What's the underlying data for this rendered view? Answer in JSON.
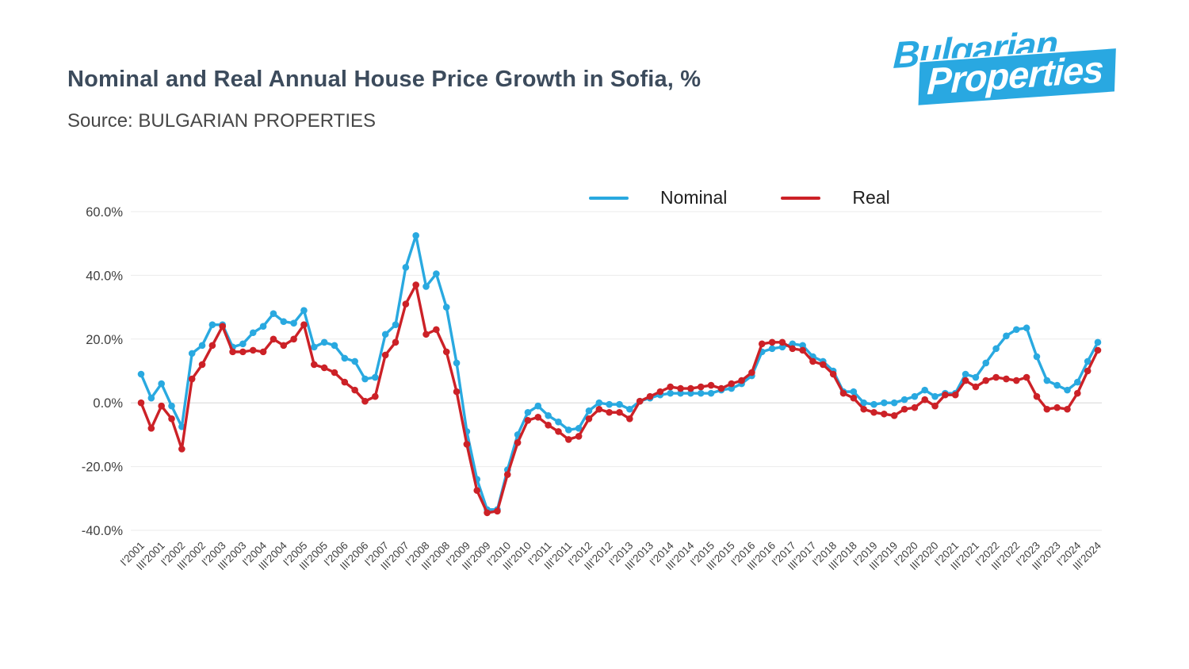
{
  "header": {
    "title": "Nominal and Real Annual House Price Growth in Sofia, %",
    "source": "Source: BULGARIAN PROPERTIES"
  },
  "logo": {
    "line1": "Bulgarian",
    "line2": "Properties",
    "brand_color": "#29a8e1"
  },
  "chart_data": {
    "type": "line",
    "title": "Nominal and Real Annual House Price Growth in Sofia, %",
    "xlabel": "",
    "ylabel": "",
    "ylim": [
      -40,
      60
    ],
    "grid": true,
    "legend_position": "top",
    "background": "#ffffff",
    "gridline_color": "#ebebeb",
    "zeroline_color": "#d6d6d6",
    "tick_color": "#3f3f3f",
    "points_per_label": 2,
    "x_labels": [
      "I'2001",
      "III'2001",
      "I'2002",
      "III'2002",
      "I'2003",
      "III'2003",
      "I'2004",
      "III'2004",
      "I'2005",
      "III'2005",
      "I'2006",
      "III'2006",
      "I'2007",
      "III'2007",
      "I'2008",
      "III'2008",
      "I'2009",
      "III'2009",
      "I'2010",
      "III'2010",
      "I'2011",
      "III'2011",
      "I'2012",
      "III'2012",
      "I'2013",
      "III'2013",
      "I'2014",
      "III'2014",
      "I'2015",
      "III'2015",
      "I'2016",
      "III'2016",
      "I'2017",
      "III'2017",
      "I'2018",
      "III'2018",
      "I'2019",
      "III'2019",
      "I'2020",
      "III'2020",
      "I'2021",
      "III'2021",
      "I'2022",
      "III'2022",
      "I'2023",
      "III'2023",
      "I'2024",
      "III'2024"
    ],
    "yticks": [
      {
        "value": 60,
        "label": "60.0%"
      },
      {
        "value": 40,
        "label": "40.0%"
      },
      {
        "value": 20,
        "label": "20.0%"
      },
      {
        "value": 0,
        "label": "0.0%"
      },
      {
        "value": -20,
        "label": "-20.0%"
      },
      {
        "value": -40,
        "label": "-40.0%"
      }
    ],
    "series": [
      {
        "name": "Nominal",
        "color": "#29a9e0",
        "values": [
          9,
          1.5,
          6,
          -1,
          -7.5,
          15.5,
          18,
          24.5,
          24.5,
          17.5,
          18.5,
          22,
          24,
          28,
          25.5,
          25,
          29,
          17.5,
          19,
          18,
          14,
          13,
          7.5,
          8,
          21.5,
          24.5,
          42.5,
          52.5,
          36.5,
          40.5,
          30,
          12.5,
          -9,
          -24,
          -33.5,
          -33.5,
          -21,
          -10,
          -3,
          -1,
          -4,
          -6,
          -8.5,
          -8,
          -2.5,
          0,
          -0.5,
          -0.5,
          -2,
          0.5,
          1.5,
          2.5,
          3,
          3,
          3,
          3,
          3,
          4,
          4.5,
          6,
          8.5,
          16,
          17,
          17.5,
          18.5,
          18,
          14.5,
          13,
          10,
          3.5,
          3.5,
          0,
          -0.5,
          0,
          0,
          1,
          2,
          4,
          2,
          3,
          3,
          9,
          8,
          12.5,
          17,
          21,
          23,
          23.5,
          14.5,
          7,
          5.5,
          4,
          6.5,
          13,
          19
        ]
      },
      {
        "name": "Real",
        "color": "#cc2127",
        "values": [
          0,
          -8,
          -1,
          -5,
          -14.5,
          7.5,
          12,
          18,
          24,
          16,
          16,
          16.5,
          16,
          20,
          18,
          20,
          24.5,
          12,
          11,
          9.5,
          6.5,
          4,
          0.5,
          2,
          15,
          19,
          31,
          37,
          21.5,
          23,
          16,
          3.5,
          -13,
          -27.5,
          -34.5,
          -34,
          -22.5,
          -12.5,
          -5.5,
          -4.5,
          -7,
          -9,
          -11.5,
          -10.5,
          -5,
          -2,
          -3,
          -3,
          -5,
          0.5,
          2,
          3.5,
          5,
          4.5,
          4.5,
          5,
          5.5,
          4.5,
          6,
          7,
          9.5,
          18.5,
          19,
          19,
          17,
          16.5,
          13,
          12,
          9,
          3,
          1.5,
          -2,
          -3,
          -3.5,
          -4,
          -2,
          -1.5,
          1,
          -1,
          2.5,
          2.5,
          7,
          5,
          7,
          8,
          7.5,
          7,
          8,
          2,
          -2,
          -1.5,
          -2,
          3,
          10,
          16.5
        ]
      }
    ]
  }
}
